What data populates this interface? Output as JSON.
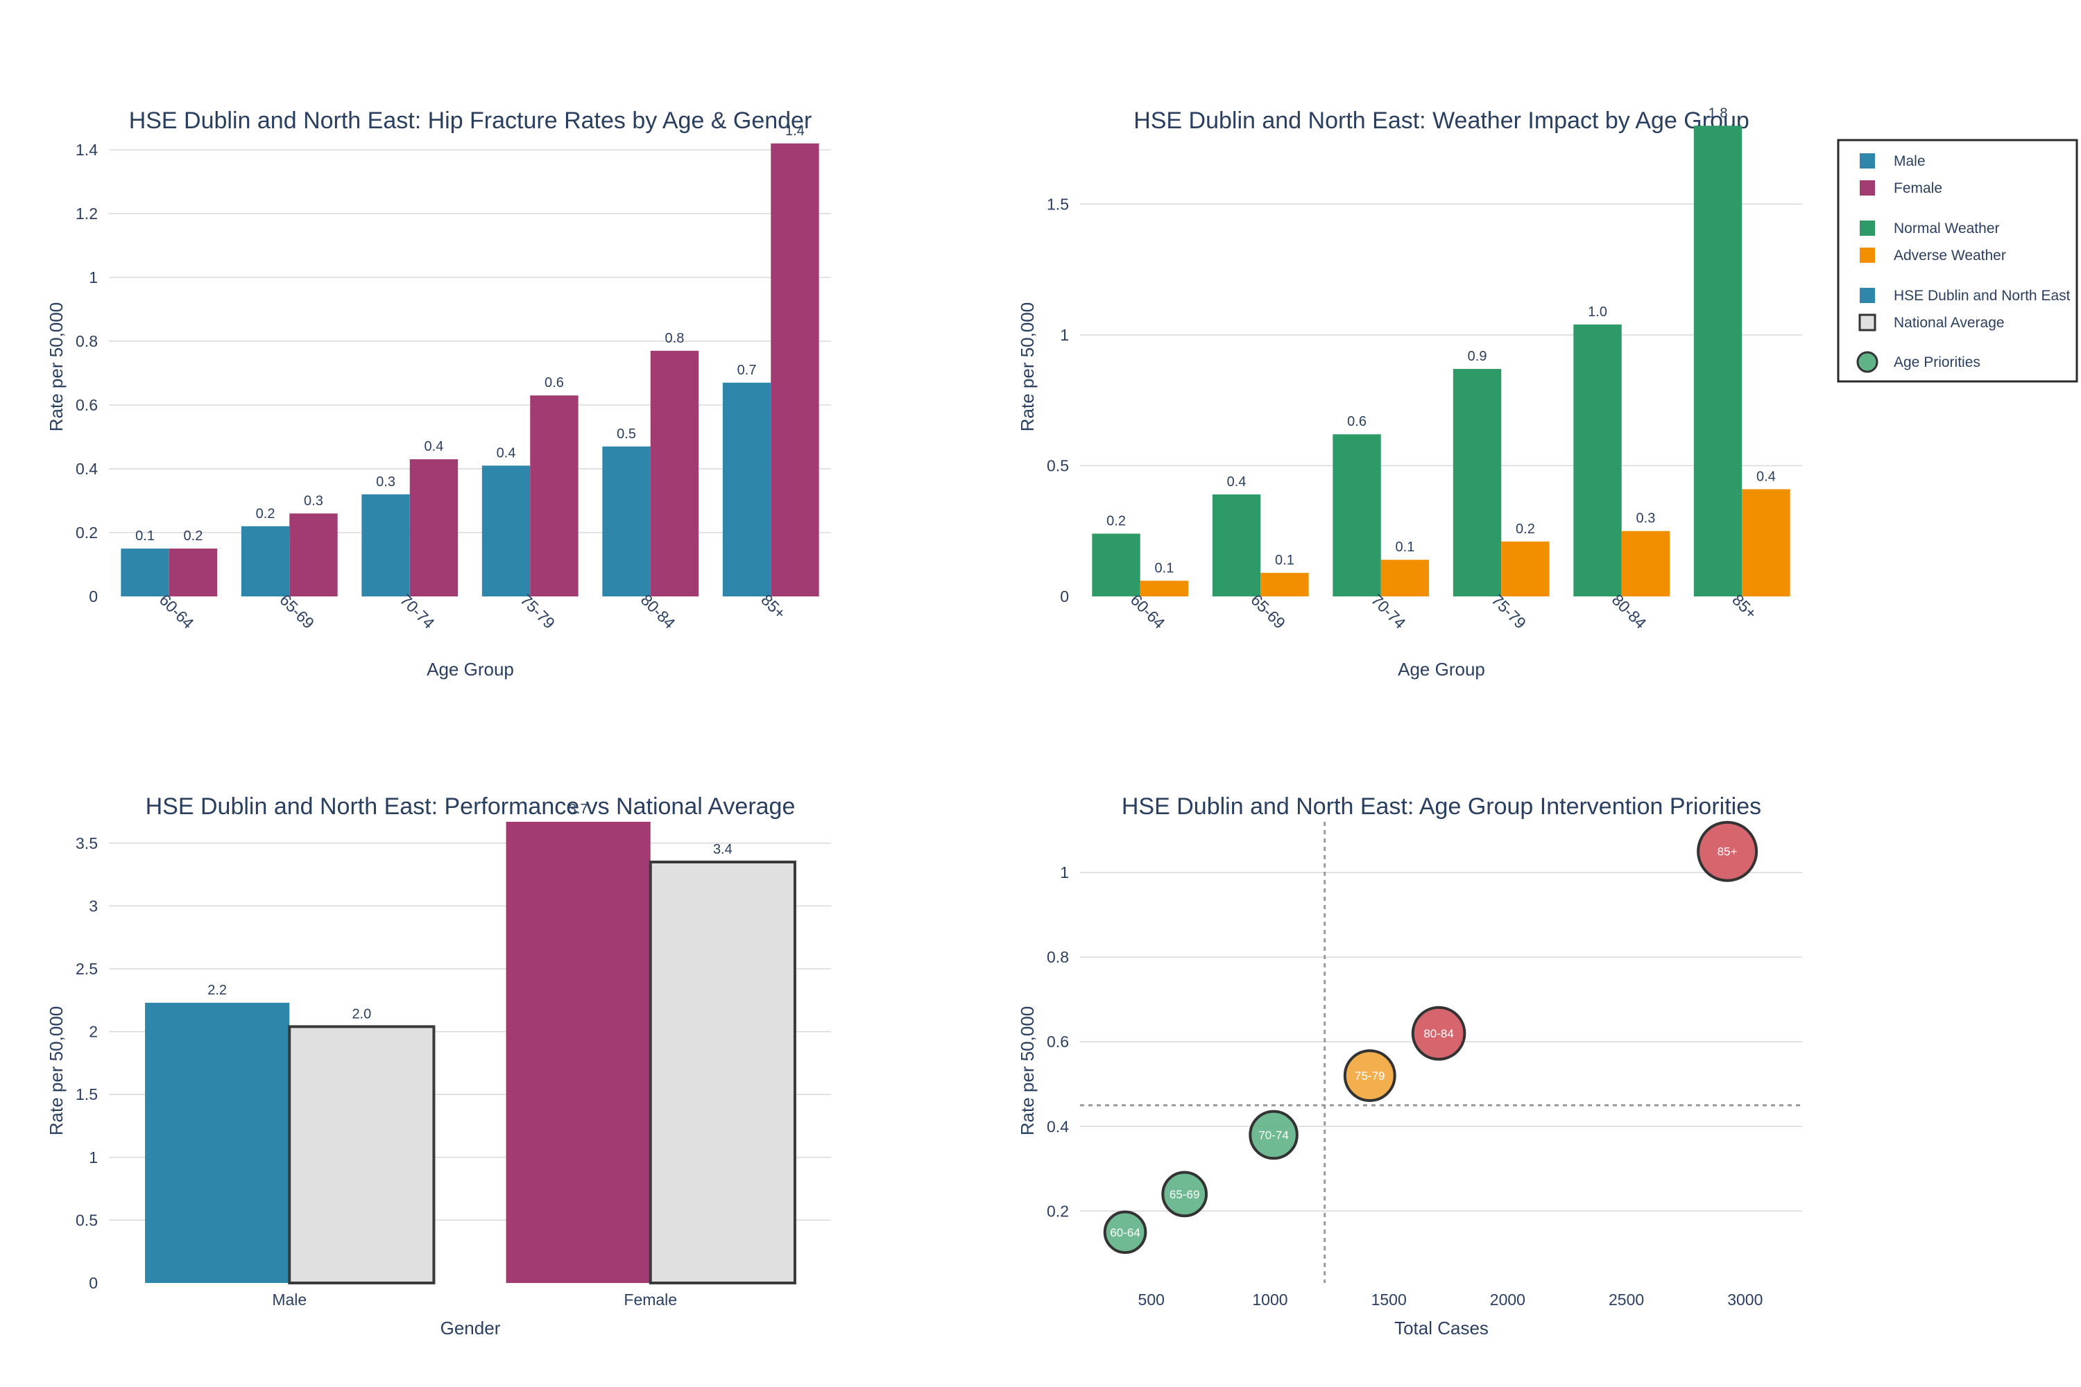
{
  "colors": {
    "male": "#2e86ab",
    "female": "#a23b72",
    "normal": "#2e9a68",
    "adverse": "#f18f01",
    "national": "#e0e0e0",
    "low": "#5fb386",
    "medium": "#f2a63a",
    "high": "#d1545e",
    "text": "#2a3f5f"
  },
  "legend": {
    "items": [
      {
        "label": "Male",
        "color": "#2e86ab",
        "shape": "square"
      },
      {
        "label": "Female",
        "color": "#a23b72",
        "shape": "square"
      },
      {
        "label": "Normal Weather",
        "color": "#2e9a68",
        "shape": "square"
      },
      {
        "label": "Adverse Weather",
        "color": "#f18f01",
        "shape": "square"
      },
      {
        "label": "HSE Dublin and North East",
        "color": "#2e86ab",
        "shape": "square"
      },
      {
        "label": "National Average",
        "color": "#e0e0e0",
        "shape": "outlined-square"
      },
      {
        "label": "Age Priorities",
        "color": "#5fb386",
        "shape": "circle"
      }
    ]
  },
  "chart_data": [
    {
      "id": "age-gender",
      "type": "bar",
      "title": "HSE Dublin and North East: Hip Fracture Rates by Age & Gender",
      "xlabel": "Age Group",
      "ylabel": "Rate per 50,000",
      "categories": [
        "60-64",
        "65-69",
        "70-74",
        "75-79",
        "80-84",
        "85+"
      ],
      "series": [
        {
          "name": "Male",
          "values": [
            0.15,
            0.22,
            0.32,
            0.41,
            0.47,
            0.67
          ],
          "labels": [
            "0.1",
            "0.2",
            "0.3",
            "0.4",
            "0.5",
            "0.7"
          ]
        },
        {
          "name": "Female",
          "values": [
            0.15,
            0.26,
            0.43,
            0.63,
            0.77,
            1.42
          ],
          "labels": [
            "0.2",
            "0.3",
            "0.4",
            "0.6",
            "0.8",
            "1.4"
          ]
        }
      ],
      "ylim": [
        0,
        1.5
      ],
      "yticks": [
        0,
        0.2,
        0.4,
        0.6,
        0.8,
        1,
        1.2,
        1.4
      ],
      "ytick_labels": [
        "0",
        "0.2",
        "0.4",
        "0.6",
        "0.8",
        "1",
        "1.2",
        "1.4"
      ],
      "grid": true
    },
    {
      "id": "weather",
      "type": "bar",
      "title": "HSE Dublin and North East: Weather Impact by Age Group",
      "xlabel": "Age Group",
      "ylabel": "Rate per 50,000",
      "categories": [
        "60-64",
        "65-69",
        "70-74",
        "75-79",
        "80-84",
        "85+"
      ],
      "series": [
        {
          "name": "Normal Weather",
          "values": [
            0.24,
            0.39,
            0.62,
            0.87,
            1.04,
            1.8
          ],
          "labels": [
            "0.2",
            "0.4",
            "0.6",
            "0.9",
            "1.0",
            "1.8"
          ]
        },
        {
          "name": "Adverse Weather",
          "values": [
            0.06,
            0.09,
            0.14,
            0.21,
            0.25,
            0.41
          ],
          "labels": [
            "0.1",
            "0.1",
            "0.1",
            "0.2",
            "0.3",
            "0.4"
          ]
        }
      ],
      "ylim": [
        0,
        1.83
      ],
      "yticks": [
        0,
        0.5,
        1,
        1.5
      ],
      "ytick_labels": [
        "0",
        "0.5",
        "1",
        "1.5"
      ],
      "grid": true
    },
    {
      "id": "national",
      "type": "bar",
      "title": "HSE Dublin and North East: Performance vs National Average",
      "xlabel": "Gender",
      "ylabel": "Rate per 50,000",
      "categories": [
        "Male",
        "Female"
      ],
      "series": [
        {
          "name": "HSE Dublin and North East",
          "values": [
            2.23,
            3.67
          ],
          "labels": [
            "2.2",
            "3.7"
          ]
        },
        {
          "name": "National Average",
          "values": [
            2.04,
            3.35
          ],
          "labels": [
            "2.0",
            "3.4"
          ]
        }
      ],
      "ylim": [
        0,
        3.67
      ],
      "yticks": [
        0,
        0.5,
        1,
        1.5,
        2,
        2.5,
        3,
        3.5
      ],
      "ytick_labels": [
        "0",
        "0.5",
        "1",
        "1.5",
        "2",
        "2.5",
        "3",
        "3.5"
      ],
      "grid": true
    },
    {
      "id": "priorities",
      "type": "scatter",
      "title": "HSE Dublin and North East: Age Group Intervention Priorities",
      "xlabel": "Total Cases",
      "ylabel": "Rate per 50,000",
      "series": [
        {
          "name": "Age Priorities",
          "points": [
            {
              "label": "60-64",
              "x": 390,
              "y": 0.15,
              "priority": "low"
            },
            {
              "label": "65-69",
              "x": 640,
              "y": 0.24,
              "priority": "low"
            },
            {
              "label": "70-74",
              "x": 1015,
              "y": 0.38,
              "priority": "low"
            },
            {
              "label": "75-79",
              "x": 1420,
              "y": 0.52,
              "priority": "medium"
            },
            {
              "label": "80-84",
              "x": 1710,
              "y": 0.62,
              "priority": "high"
            },
            {
              "label": "85+",
              "x": 2925,
              "y": 1.05,
              "priority": "high"
            }
          ]
        }
      ],
      "reference_lines": {
        "x": 1230,
        "y": 0.45
      },
      "xlim": [
        200,
        3240
      ],
      "ylim": [
        0.03,
        1.12
      ],
      "xticks": [
        500,
        1000,
        1500,
        2000,
        2500,
        3000
      ],
      "xtick_labels": [
        "500",
        "1000",
        "1500",
        "2000",
        "2500",
        "3000"
      ],
      "yticks": [
        0.2,
        0.4,
        0.6,
        0.8,
        1
      ],
      "ytick_labels": [
        "0.2",
        "0.4",
        "0.6",
        "0.8",
        "1"
      ],
      "grid": true
    }
  ]
}
